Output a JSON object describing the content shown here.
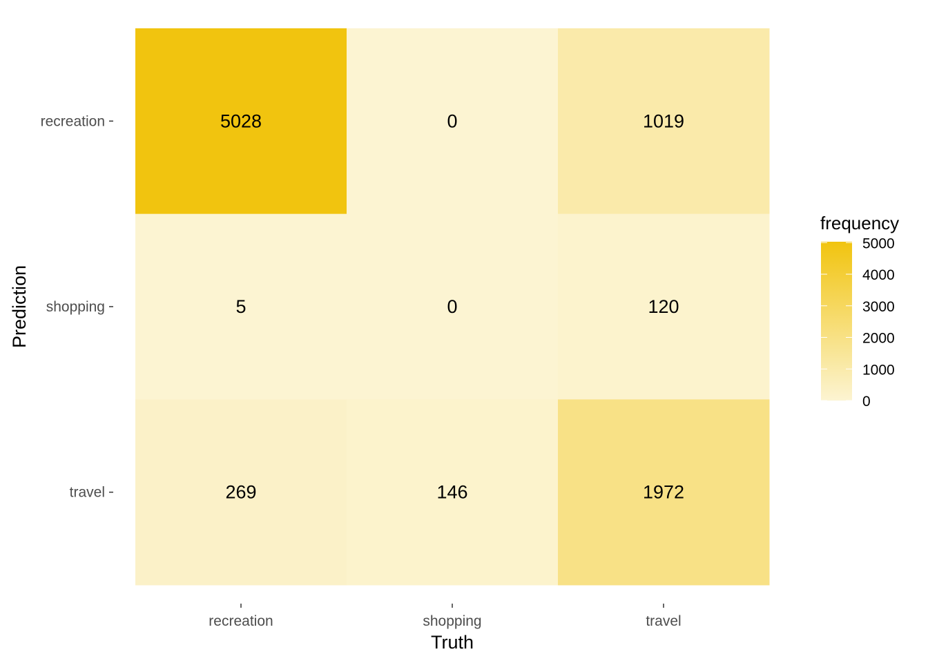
{
  "chart_data": {
    "type": "heatmap",
    "xlabel": "Truth",
    "ylabel": "Prediction",
    "x_categories": [
      "recreation",
      "shopping",
      "travel"
    ],
    "y_categories": [
      "recreation",
      "shopping",
      "travel"
    ],
    "cells": [
      {
        "prediction": "recreation",
        "truth": "recreation",
        "value": 5028
      },
      {
        "prediction": "recreation",
        "truth": "shopping",
        "value": 0
      },
      {
        "prediction": "recreation",
        "truth": "travel",
        "value": 1019
      },
      {
        "prediction": "shopping",
        "truth": "recreation",
        "value": 5
      },
      {
        "prediction": "shopping",
        "truth": "shopping",
        "value": 0
      },
      {
        "prediction": "shopping",
        "truth": "travel",
        "value": 120
      },
      {
        "prediction": "travel",
        "truth": "recreation",
        "value": 269
      },
      {
        "prediction": "travel",
        "truth": "shopping",
        "value": 146
      },
      {
        "prediction": "travel",
        "truth": "travel",
        "value": 1972
      }
    ],
    "legend": {
      "title": "frequency",
      "placement": "right",
      "range": [
        0,
        5028
      ],
      "breaks": [
        0,
        1000,
        2000,
        3000,
        4000,
        5000
      ],
      "break_labels": [
        "0",
        "1000",
        "2000",
        "3000",
        "4000",
        "5000"
      ],
      "color_low": "#fcf4d2",
      "color_high": "#f1c40f"
    },
    "grid": false
  }
}
